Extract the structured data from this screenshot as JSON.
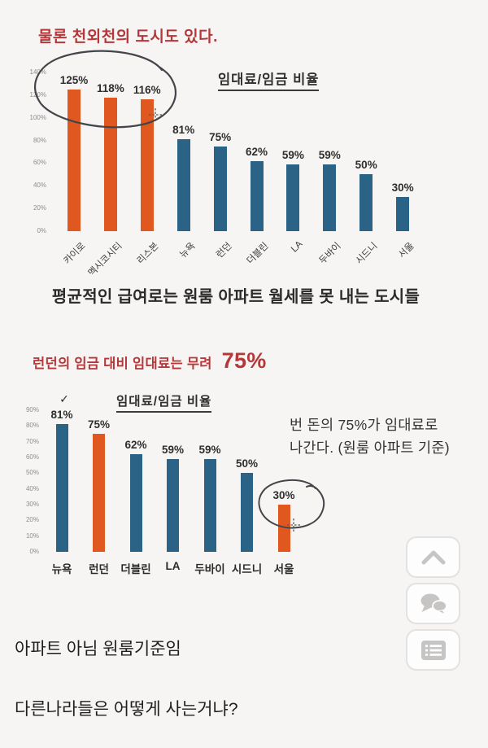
{
  "page": {
    "background": "#f6f5f3",
    "accent_red": "#b5373a",
    "bar_orange": "#e0571f",
    "bar_blue": "#2a6385",
    "annotation_ink": "#43454a",
    "icon_gray": "#c7c5c3"
  },
  "texts": {
    "heading1": "물론 천외천의 도시도 있다.",
    "mid_heading": "평균적인 급여로는 원룸 아파트 월세를 못 내는 도시들",
    "heading2_prefix": "런던의 임금 대비 임대료는 무려",
    "heading2_value": "75%",
    "side_note_line1": "번 돈의 75%가 임대료로",
    "side_note_line2": "나간다. (원룸 아파트 기준)",
    "comment1": "아파트 아님 원룸기준임",
    "comment2": "다른나라들은 어떻게 사는거냐?"
  },
  "chart_data": [
    {
      "type": "bar",
      "title": "임대료/임금 비율",
      "categories": [
        "카이로",
        "멕시코시티",
        "리스본",
        "뉴욕",
        "런던",
        "더블린",
        "LA",
        "두바이",
        "시드니",
        "서울"
      ],
      "values": [
        125,
        118,
        116,
        81,
        75,
        62,
        59,
        59,
        50,
        30
      ],
      "colors": [
        "orange",
        "orange",
        "orange",
        "blue",
        "blue",
        "blue",
        "blue",
        "blue",
        "blue",
        "blue"
      ],
      "ylim": [
        0,
        140
      ],
      "yticks": [
        "0%",
        "20%",
        "40%",
        "60%",
        "80%",
        "100%",
        "120%",
        "140%"
      ],
      "grid": false,
      "legend": "none",
      "annotation": "hand-drawn circle around the three orange bars (카이로 125%, 멕시코시티 118%, 리스본 116%) with a small crosshair cursor near 116%"
    },
    {
      "type": "bar",
      "title": "임대료/임금 비율",
      "categories": [
        "뉴욕",
        "런던",
        "더블린",
        "LA",
        "두바이",
        "시드니",
        "서울"
      ],
      "values": [
        81,
        75,
        62,
        59,
        59,
        50,
        30
      ],
      "colors": [
        "blue",
        "orange",
        "blue",
        "blue",
        "blue",
        "blue",
        "orange"
      ],
      "ylim": [
        0,
        90
      ],
      "yticks": [
        "0%",
        "10%",
        "20%",
        "30%",
        "40%",
        "50%",
        "60%",
        "70%",
        "80%",
        "90%"
      ],
      "grid": false,
      "legend": "none",
      "check_mark": "✓",
      "annotation": "check mark above 뉴욕 bar; hand-drawn circle around 서울 30% with crosshair cursor"
    }
  ],
  "floating_buttons": {
    "icons": [
      "chevron-up",
      "chat-bubbles",
      "list"
    ]
  }
}
